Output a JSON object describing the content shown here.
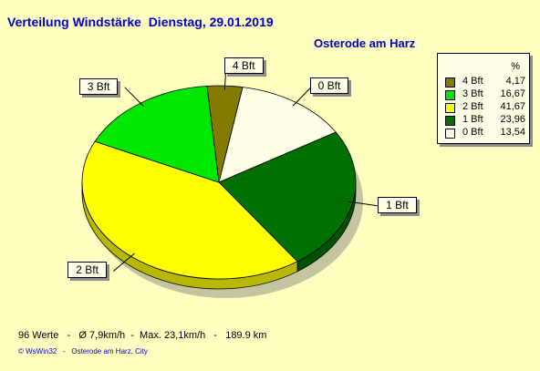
{
  "chart_data": {
    "type": "pie",
    "title": "Verteilung Windstärke  Dienstag, 29.01.2019",
    "subtitle": "Osterode am Harz",
    "legend_header": "%",
    "legend_position": "top-right",
    "slices": [
      {
        "label": "4 Bft",
        "value": 4.17,
        "value_text": "4,17",
        "color": "#857a00"
      },
      {
        "label": "0 Bft",
        "value": 13.54,
        "value_text": "13,54",
        "color": "#ffffe8"
      },
      {
        "label": "1 Bft",
        "value": 23.96,
        "value_text": "23,96",
        "color": "#007000"
      },
      {
        "label": "2 Bft",
        "value": 41.67,
        "value_text": "41,67",
        "color": "#ffff00"
      },
      {
        "label": "3 Bft",
        "value": 16.67,
        "value_text": "16,67",
        "color": "#00e800"
      }
    ],
    "legend_order": [
      0,
      4,
      3,
      2,
      1
    ]
  },
  "stats_line": "96 Werte   -   Ø 7,9km/h  -  Max. 23,1km/h   -   189.9 km",
  "footer": "© WsWin32   -   Osterode am Harz, City"
}
